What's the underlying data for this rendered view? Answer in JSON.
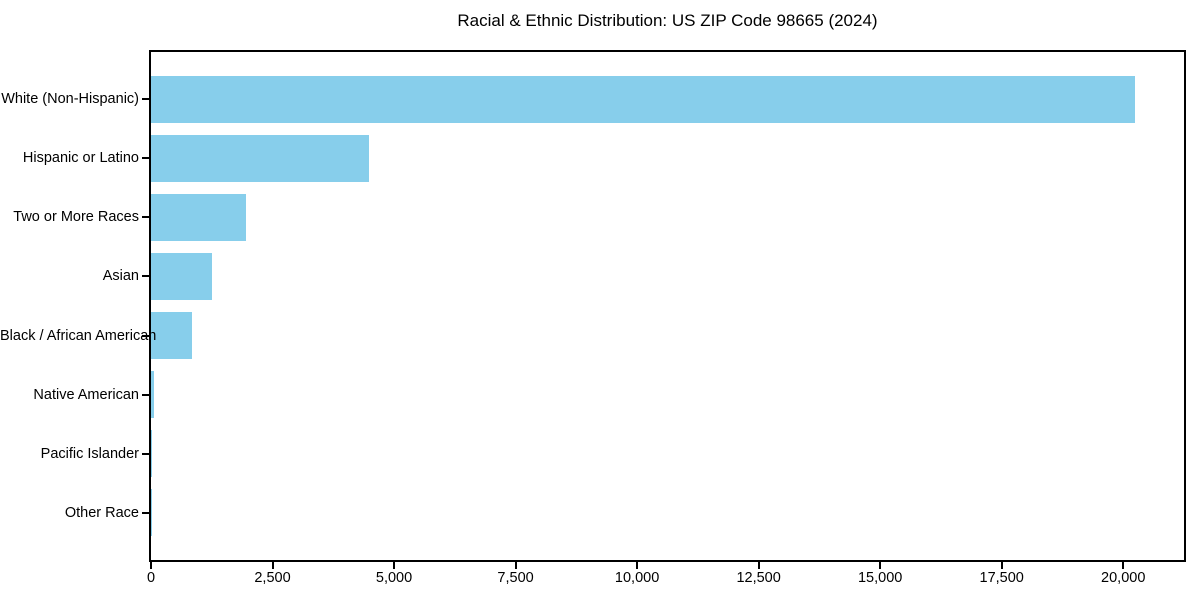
{
  "chart_data": {
    "type": "bar",
    "orientation": "horizontal",
    "title": "Racial & Ethnic Distribution: US ZIP Code 98665 (2024)",
    "categories": [
      "White (Non-Hispanic)",
      "Hispanic or Latino",
      "Two or More Races",
      "Asian",
      "Black / African American",
      "Native American",
      "Pacific Islander",
      "Other Race"
    ],
    "values": [
      20240,
      4490,
      1950,
      1250,
      850,
      70,
      25,
      10
    ],
    "xlabel": "",
    "ylabel": "",
    "xlim": [
      0,
      21250
    ],
    "xticks": [
      0,
      2500,
      5000,
      7500,
      10000,
      12500,
      15000,
      17500,
      20000
    ],
    "xtick_labels": [
      "0",
      "2,500",
      "5,000",
      "7,500",
      "10,000",
      "12,500",
      "15,000",
      "17,500",
      "20,000"
    ],
    "bar_color": "#87CEEB",
    "grid": false,
    "legend": null,
    "colors": {
      "spine": "#000000",
      "text": "#000000",
      "background": "#ffffff"
    }
  }
}
